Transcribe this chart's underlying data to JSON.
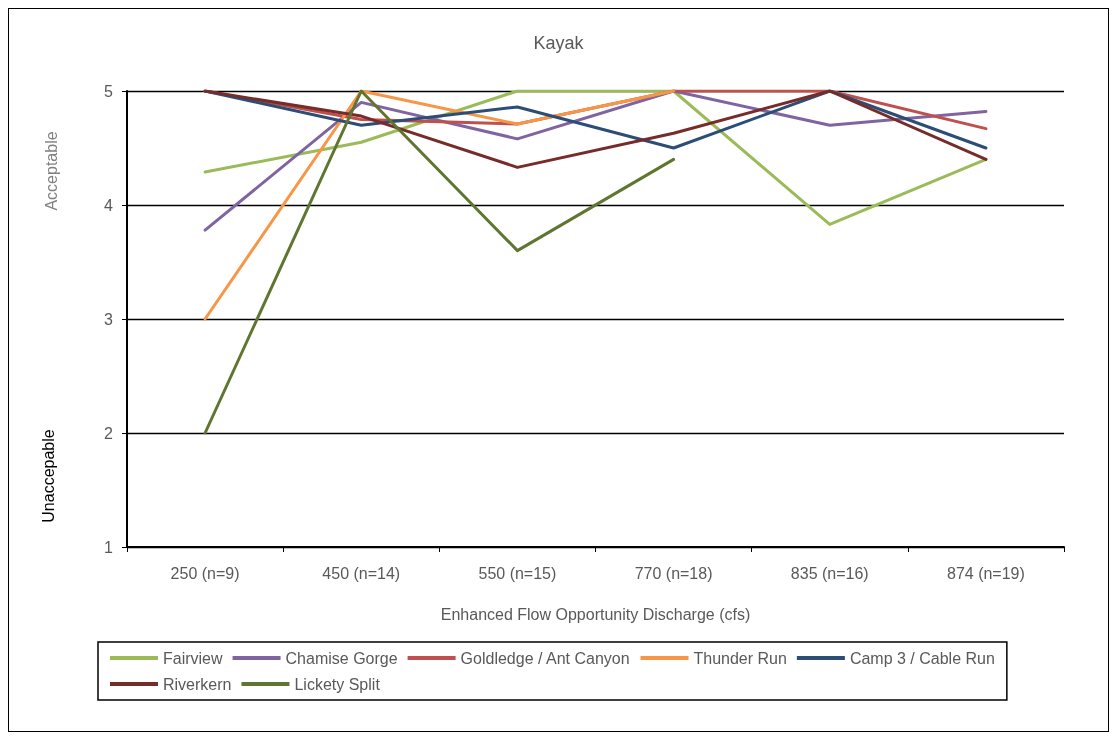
{
  "chart_data": {
    "type": "line",
    "title": "Kayak",
    "xlabel": "Enhanced Flow Opportunity Discharge (cfs)",
    "annotations": [
      "Acceptable",
      "Unaccepable"
    ],
    "categories": [
      "250 (n=9)",
      "450 (n=14)",
      "550 (n=15)",
      "770 (n=18)",
      "835 (n=16)",
      "874 (n=19)"
    ],
    "series": [
      {
        "name": "Fairview",
        "color": "#9bbb59",
        "values": [
          4.29,
          4.55,
          5,
          5,
          3.83,
          4.4
        ]
      },
      {
        "name": "Chamise Gorge",
        "color": "#8064a2",
        "values": [
          3.78,
          4.9,
          4.58,
          5,
          4.7,
          4.82
        ]
      },
      {
        "name": "Goldledge / Ant Canyon",
        "color": "#c0504d",
        "values": [
          5,
          4.75,
          4.71,
          5,
          5,
          4.67
        ]
      },
      {
        "name": "Thunder Run",
        "color": "#f79646",
        "values": [
          3,
          5,
          4.71,
          5,
          null,
          null
        ]
      },
      {
        "name": "Camp 3 / Cable Run",
        "color": "#2c4d75",
        "values": [
          5,
          4.7,
          4.86,
          4.5,
          5,
          4.5
        ]
      },
      {
        "name": "Riverkern",
        "color": "#772c2a",
        "values": [
          5,
          4.78,
          4.33,
          4.63,
          5,
          4.4
        ]
      },
      {
        "name": "Lickety Split",
        "color": "#5f7530",
        "values": [
          2,
          5,
          3.6,
          4.4,
          null,
          null
        ]
      }
    ],
    "ylim": [
      1,
      5
    ],
    "yticks": [
      1,
      2,
      3,
      4,
      5
    ],
    "grid": "y",
    "legend": "bottom",
    "marker": "none",
    "line_style": "solid"
  }
}
